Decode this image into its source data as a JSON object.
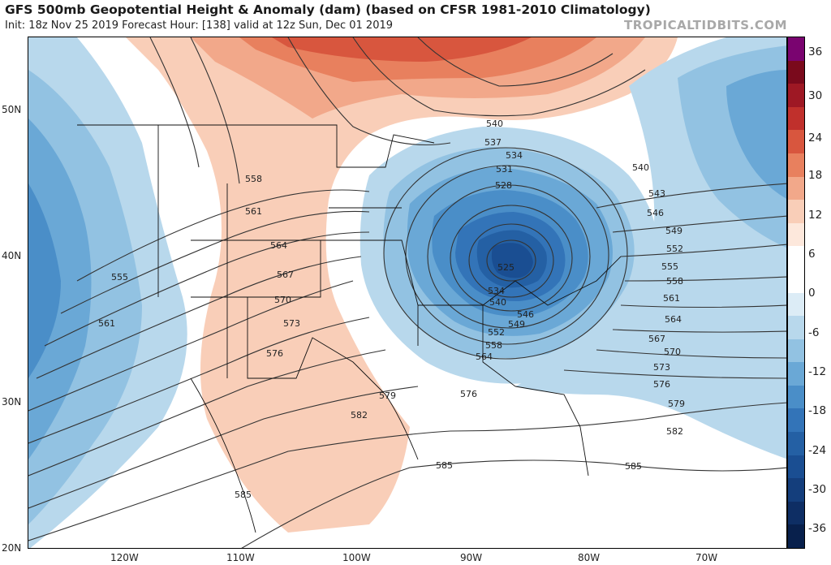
{
  "header": {
    "title": "GFS 500mb Geopotential Height & Anomaly (dam) (based on CFSR 1981-2010 Climatology)",
    "subtitle": "Init: 18z Nov 25 2019   Forecast Hour: [138]   valid at 12z Sun, Dec 01 2019",
    "brand": "TROPICALTIDBITS.COM"
  },
  "axes": {
    "lat_labels": [
      "50N",
      "40N",
      "30N",
      "20N"
    ],
    "lon_labels": [
      "120W",
      "110W",
      "100W",
      "90W",
      "80W",
      "70W"
    ]
  },
  "colorbar": {
    "labels": [
      "36",
      "30",
      "24",
      "18",
      "12",
      "6",
      "0",
      "-6",
      "-12",
      "-18",
      "-24",
      "-30",
      "-36"
    ],
    "colors": [
      "#7a0470",
      "#7a0a1c",
      "#9e1824",
      "#c0302c",
      "#d8563e",
      "#e8805e",
      "#f2a88a",
      "#f9ceb8",
      "#fde8dc",
      "#ffffff",
      "#ffffff",
      "#dcecf6",
      "#b8d8ec",
      "#92c2e2",
      "#6aa8d6",
      "#4a8ec8",
      "#3374b8",
      "#2460a4",
      "#1a4e92",
      "#143e7c",
      "#0e2e64",
      "#08204c"
    ]
  },
  "contours": {
    "labels": [
      "537",
      "540",
      "534",
      "531",
      "528",
      "525",
      "534",
      "540",
      "546",
      "549",
      "552",
      "558",
      "564",
      "540",
      "543",
      "546",
      "549",
      "552",
      "555",
      "558",
      "561",
      "564",
      "567",
      "570",
      "573",
      "576",
      "579",
      "582",
      "585",
      "558",
      "561",
      "564",
      "567",
      "570",
      "573",
      "576",
      "579",
      "582",
      "585",
      "585",
      "555",
      "561",
      "576"
    ]
  },
  "map": {
    "ocean_color": "#ffffff",
    "positive_anomaly_color": "#f9ceb8",
    "negative_anomaly_color": "#92c2e2"
  }
}
